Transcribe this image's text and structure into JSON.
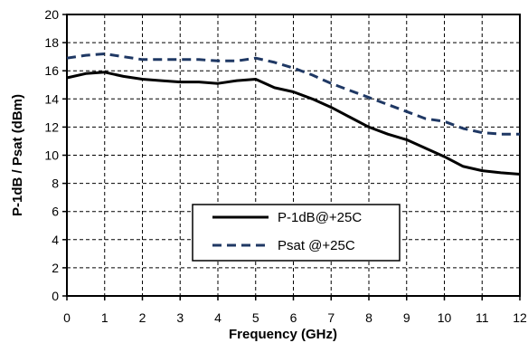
{
  "chart_data": {
    "type": "line",
    "title": "",
    "xlabel": "Frequency (GHz)",
    "ylabel": "P-1dB / Psat (dBm)",
    "xlim": [
      0,
      12
    ],
    "ylim": [
      0,
      20
    ],
    "x_ticks": [
      "0",
      "1",
      "2",
      "3",
      "4",
      "5",
      "6",
      "7",
      "8",
      "9",
      "10",
      "11",
      "12"
    ],
    "y_ticks": [
      "0",
      "2",
      "4",
      "6",
      "8",
      "10",
      "12",
      "14",
      "16",
      "18",
      "20"
    ],
    "grid": true,
    "legend_position": "bottom-center",
    "series": [
      {
        "name": "P-1dB@+25C",
        "style": "solid",
        "color": "#000000",
        "points": [
          [
            0,
            15.5
          ],
          [
            0.5,
            15.8
          ],
          [
            1,
            15.9
          ],
          [
            1.5,
            15.6
          ],
          [
            2,
            15.4
          ],
          [
            2.5,
            15.3
          ],
          [
            3,
            15.2
          ],
          [
            3.5,
            15.2
          ],
          [
            4,
            15.1
          ],
          [
            4.5,
            15.3
          ],
          [
            5,
            15.4
          ],
          [
            5.5,
            14.8
          ],
          [
            6,
            14.5
          ],
          [
            6.5,
            14.0
          ],
          [
            7,
            13.4
          ],
          [
            7.5,
            12.7
          ],
          [
            8,
            12.0
          ],
          [
            8.5,
            11.5
          ],
          [
            9,
            11.1
          ],
          [
            9.5,
            10.5
          ],
          [
            10,
            9.9
          ],
          [
            10.5,
            9.2
          ],
          [
            11,
            8.9
          ],
          [
            11.5,
            8.75
          ],
          [
            12,
            8.65
          ]
        ]
      },
      {
        "name": "Psat  @+25C",
        "style": "dashed",
        "color": "#1f3864",
        "points": [
          [
            0,
            16.9
          ],
          [
            0.5,
            17.1
          ],
          [
            1,
            17.2
          ],
          [
            1.5,
            17.0
          ],
          [
            2,
            16.8
          ],
          [
            2.5,
            16.8
          ],
          [
            3,
            16.8
          ],
          [
            3.5,
            16.8
          ],
          [
            4,
            16.7
          ],
          [
            4.5,
            16.7
          ],
          [
            5,
            16.9
          ],
          [
            5.5,
            16.6
          ],
          [
            6,
            16.2
          ],
          [
            6.5,
            15.7
          ],
          [
            7,
            15.1
          ],
          [
            7.5,
            14.6
          ],
          [
            8,
            14.1
          ],
          [
            8.5,
            13.6
          ],
          [
            9,
            13.1
          ],
          [
            9.5,
            12.6
          ],
          [
            10,
            12.4
          ],
          [
            10.5,
            11.9
          ],
          [
            11,
            11.6
          ],
          [
            11.5,
            11.5
          ],
          [
            12,
            11.5
          ]
        ]
      }
    ]
  }
}
